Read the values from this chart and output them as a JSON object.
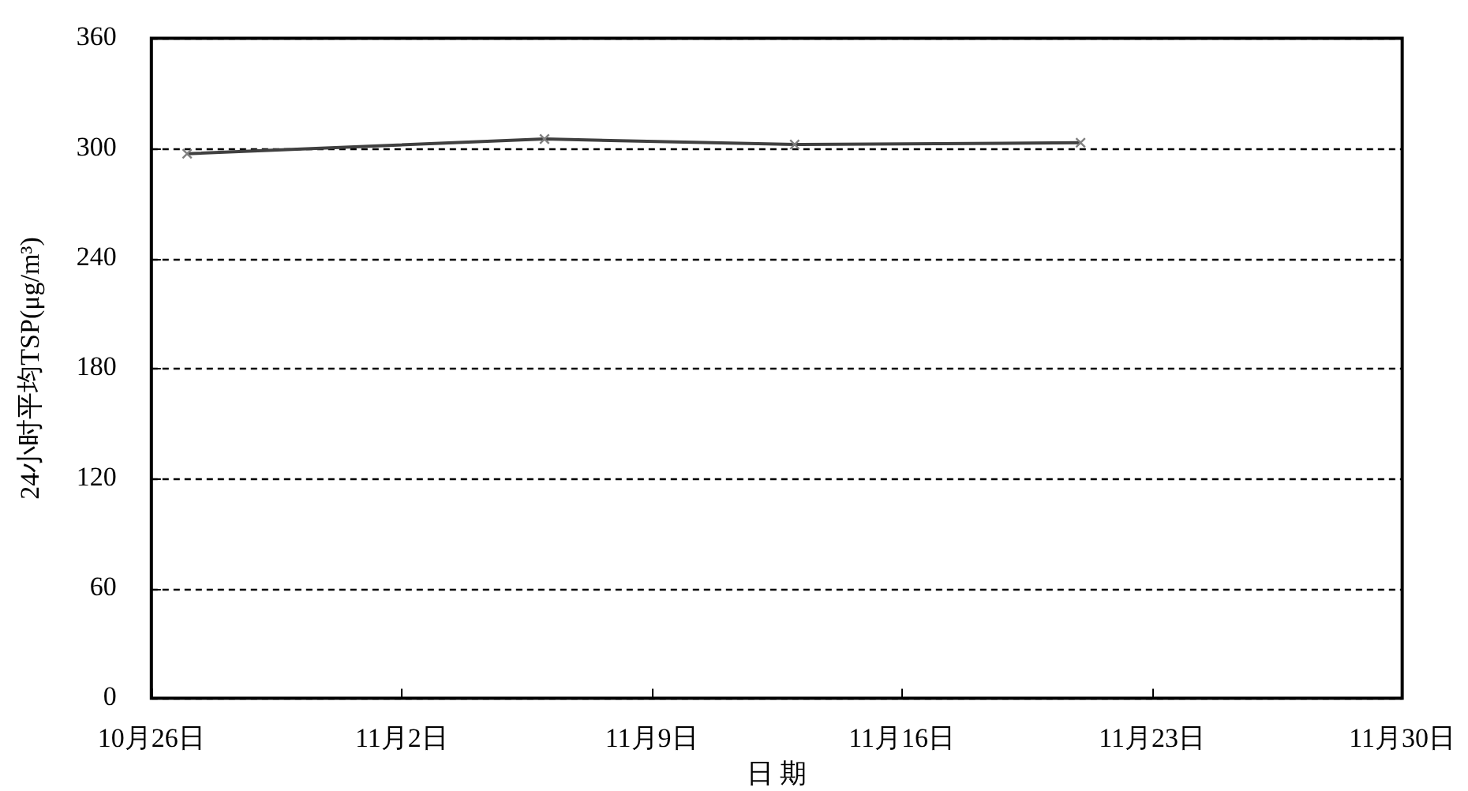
{
  "chart_data": {
    "type": "line",
    "xlabel": "日 期",
    "ylabel": "24小时平均TSP(μg/m³)",
    "x": [
      "--10-27",
      "--11-06",
      "--11-13",
      "--11-21"
    ],
    "series": [
      {
        "color": "#404040",
        "values": [
          297,
          305,
          302,
          303
        ]
      }
    ],
    "xlim": [
      "--10-26",
      "--11-30"
    ],
    "xticks": [
      {
        "value": "--10-26",
        "label": "10月26日"
      },
      {
        "value": "--11-02",
        "label": "11月2日"
      },
      {
        "value": "--11-09",
        "label": "11月9日"
      },
      {
        "value": "--11-16",
        "label": "11月16日"
      },
      {
        "value": "--11-23",
        "label": "11月23日"
      },
      {
        "value": "--11-30",
        "label": "11月30日"
      }
    ],
    "ylim": [
      0,
      360
    ],
    "yticks": [
      0,
      60,
      120,
      180,
      240,
      300,
      360
    ],
    "grid": "y",
    "legend": false,
    "marker": "cross",
    "line_style": "solid"
  }
}
